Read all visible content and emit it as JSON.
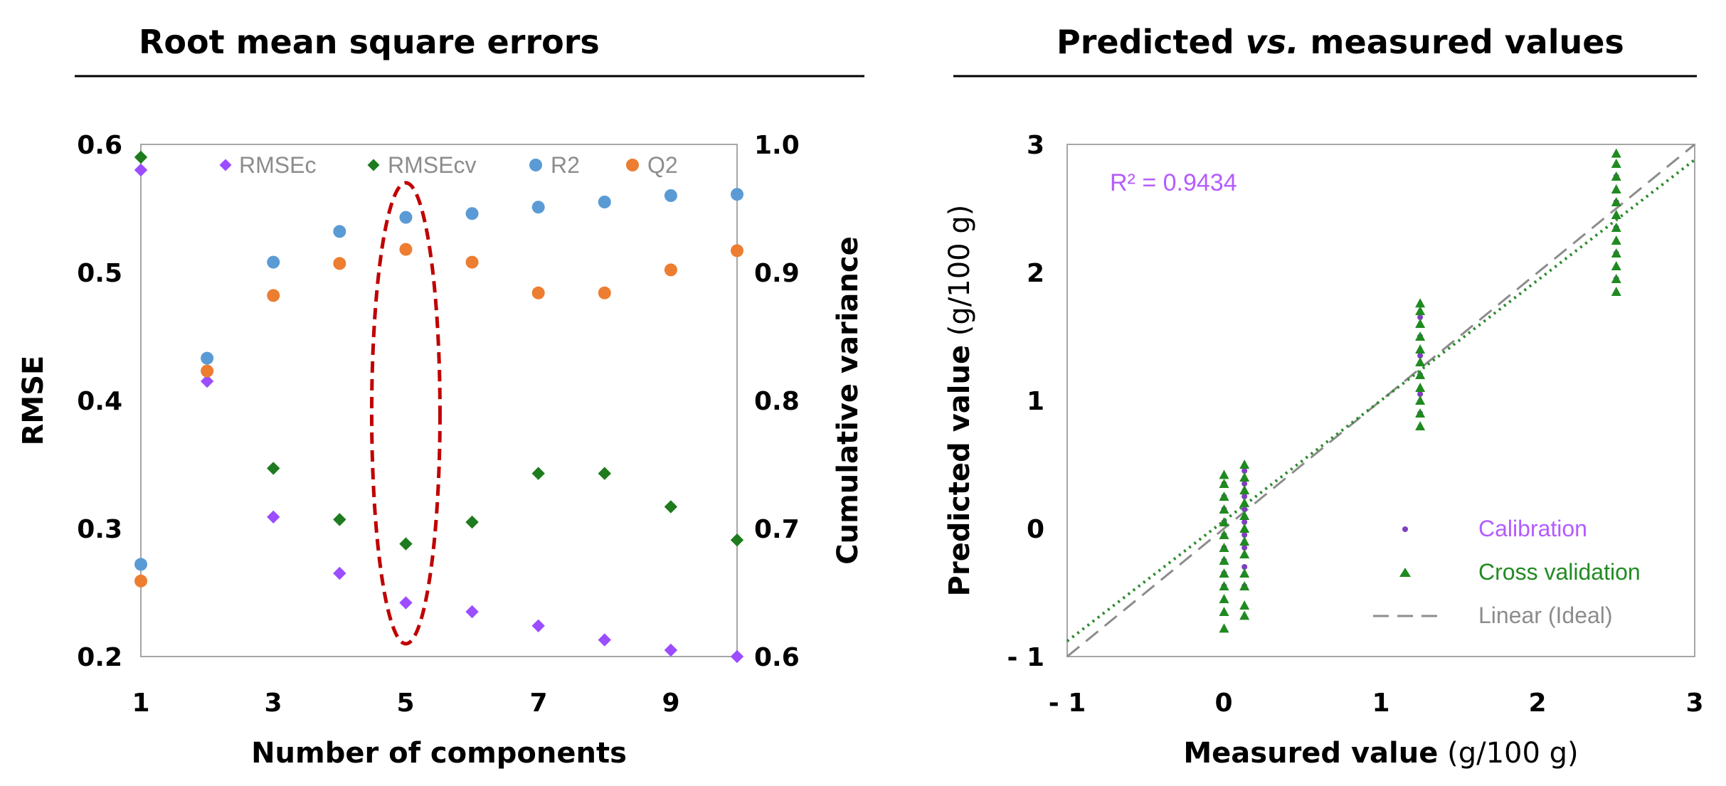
{
  "colors": {
    "rmsec": "#9B4DFF",
    "rmsecv": "#1E7B1E",
    "r2": "#5B9BD5",
    "q2": "#ED7D31",
    "ellipse": "#C00000",
    "calibration": "#7F3FBF",
    "cross_validation": "#1F8A1F",
    "ideal_line": "#8C8C8C",
    "fit_line": "#2E8B2E",
    "legend_text_gray": "#8C8C8C",
    "legend_text_purple": "#B45CFF",
    "legend_text_green": "#228B22",
    "plot_border": "#A6A6A6"
  },
  "chart_data": [
    {
      "type": "scatter",
      "title": "Root mean square errors",
      "xlabel": "Number of components",
      "ylabel": "RMSE",
      "y2label": "Cumulative variance",
      "xlim": [
        1,
        10
      ],
      "ylim": [
        0.2,
        0.6
      ],
      "y2lim": [
        0.6,
        1.0
      ],
      "xticks": [
        "1",
        "3",
        "5",
        "7",
        "9"
      ],
      "yticks": [
        "0.2",
        "0.3",
        "0.4",
        "0.5",
        "0.6"
      ],
      "y2ticks": [
        "0.6",
        "0.7",
        "0.8",
        "0.9",
        "1.0"
      ],
      "legend_position": "top",
      "x": [
        1,
        2,
        3,
        4,
        5,
        6,
        7,
        8,
        9,
        10
      ],
      "series": [
        {
          "name": "RMSEc",
          "axis": "left",
          "marker": "diamond",
          "values": [
            0.58,
            0.415,
            0.309,
            0.265,
            0.242,
            0.235,
            0.224,
            0.213,
            0.205,
            0.2
          ]
        },
        {
          "name": "RMSEcv",
          "axis": "left",
          "marker": "diamond",
          "values": [
            0.59,
            0.423,
            0.347,
            0.307,
            0.288,
            0.305,
            0.343,
            0.343,
            0.317,
            0.291
          ]
        },
        {
          "name": "R2",
          "axis": "right",
          "marker": "circle",
          "values": [
            0.672,
            0.833,
            0.908,
            0.932,
            0.943,
            0.946,
            0.951,
            0.955,
            0.96,
            0.961
          ]
        },
        {
          "name": "Q2",
          "axis": "right",
          "marker": "circle",
          "values": [
            0.659,
            0.823,
            0.882,
            0.907,
            0.918,
            0.908,
            0.884,
            0.884,
            0.902,
            0.917
          ]
        }
      ],
      "annotation": {
        "type": "ellipse",
        "x": 5,
        "y_range": [
          0.21,
          0.57
        ],
        "style": "dashed"
      }
    },
    {
      "type": "scatter",
      "title": "Predicted vs. measured values",
      "title_parts": [
        "Predicted ",
        "vs.",
        " measured values"
      ],
      "xlabel": "Measured value",
      "xlabel_unit": " (g/100 g)",
      "ylabel": "Predicted value",
      "ylabel_unit": " (g/100 g)",
      "xlim": [
        -1,
        3
      ],
      "ylim": [
        -1,
        3
      ],
      "xticks": [
        "- 1",
        "0",
        "1",
        "2",
        "3"
      ],
      "yticks": [
        "- 1",
        "0",
        "1",
        "2",
        "3"
      ],
      "r2_label": "R² = 0.9434",
      "legend_position": "bottom-right",
      "legend": [
        "Calibration",
        "Cross validation",
        "Linear (Ideal)"
      ],
      "groups": [
        {
          "x": 0.0,
          "cal": [
            -0.45,
            -0.35,
            -0.25,
            -0.15,
            -0.05,
            0.05,
            0.15,
            0.25,
            0.35
          ],
          "cv": [
            -0.78,
            -0.65,
            -0.55,
            -0.45,
            -0.35,
            -0.25,
            -0.15,
            -0.05,
            0.05,
            0.15,
            0.25,
            0.35,
            0.42
          ]
        },
        {
          "x": 0.13,
          "cal": [
            -0.45,
            -0.3,
            -0.15,
            -0.05,
            0.05,
            0.15,
            0.25,
            0.35,
            0.45
          ],
          "cv": [
            -0.68,
            -0.6,
            -0.45,
            -0.35,
            -0.2,
            -0.1,
            0.0,
            0.1,
            0.2,
            0.3,
            0.4,
            0.5
          ]
        },
        {
          "x": 1.25,
          "cal": [
            0.9,
            1.05,
            1.2,
            1.35,
            1.5,
            1.65
          ],
          "cv": [
            0.8,
            0.9,
            1.0,
            1.1,
            1.2,
            1.3,
            1.4,
            1.5,
            1.6,
            1.7,
            1.76
          ]
        },
        {
          "x": 2.5,
          "cal": [
            1.95,
            2.15,
            2.35,
            2.55,
            2.75
          ],
          "cv": [
            1.85,
            1.95,
            2.05,
            2.15,
            2.25,
            2.35,
            2.45,
            2.55,
            2.65,
            2.75,
            2.85,
            2.93
          ]
        }
      ],
      "ideal_line": {
        "slope": 1,
        "intercept": 0
      },
      "fit_line": {
        "slope": 0.94,
        "intercept": 0.06
      }
    }
  ]
}
